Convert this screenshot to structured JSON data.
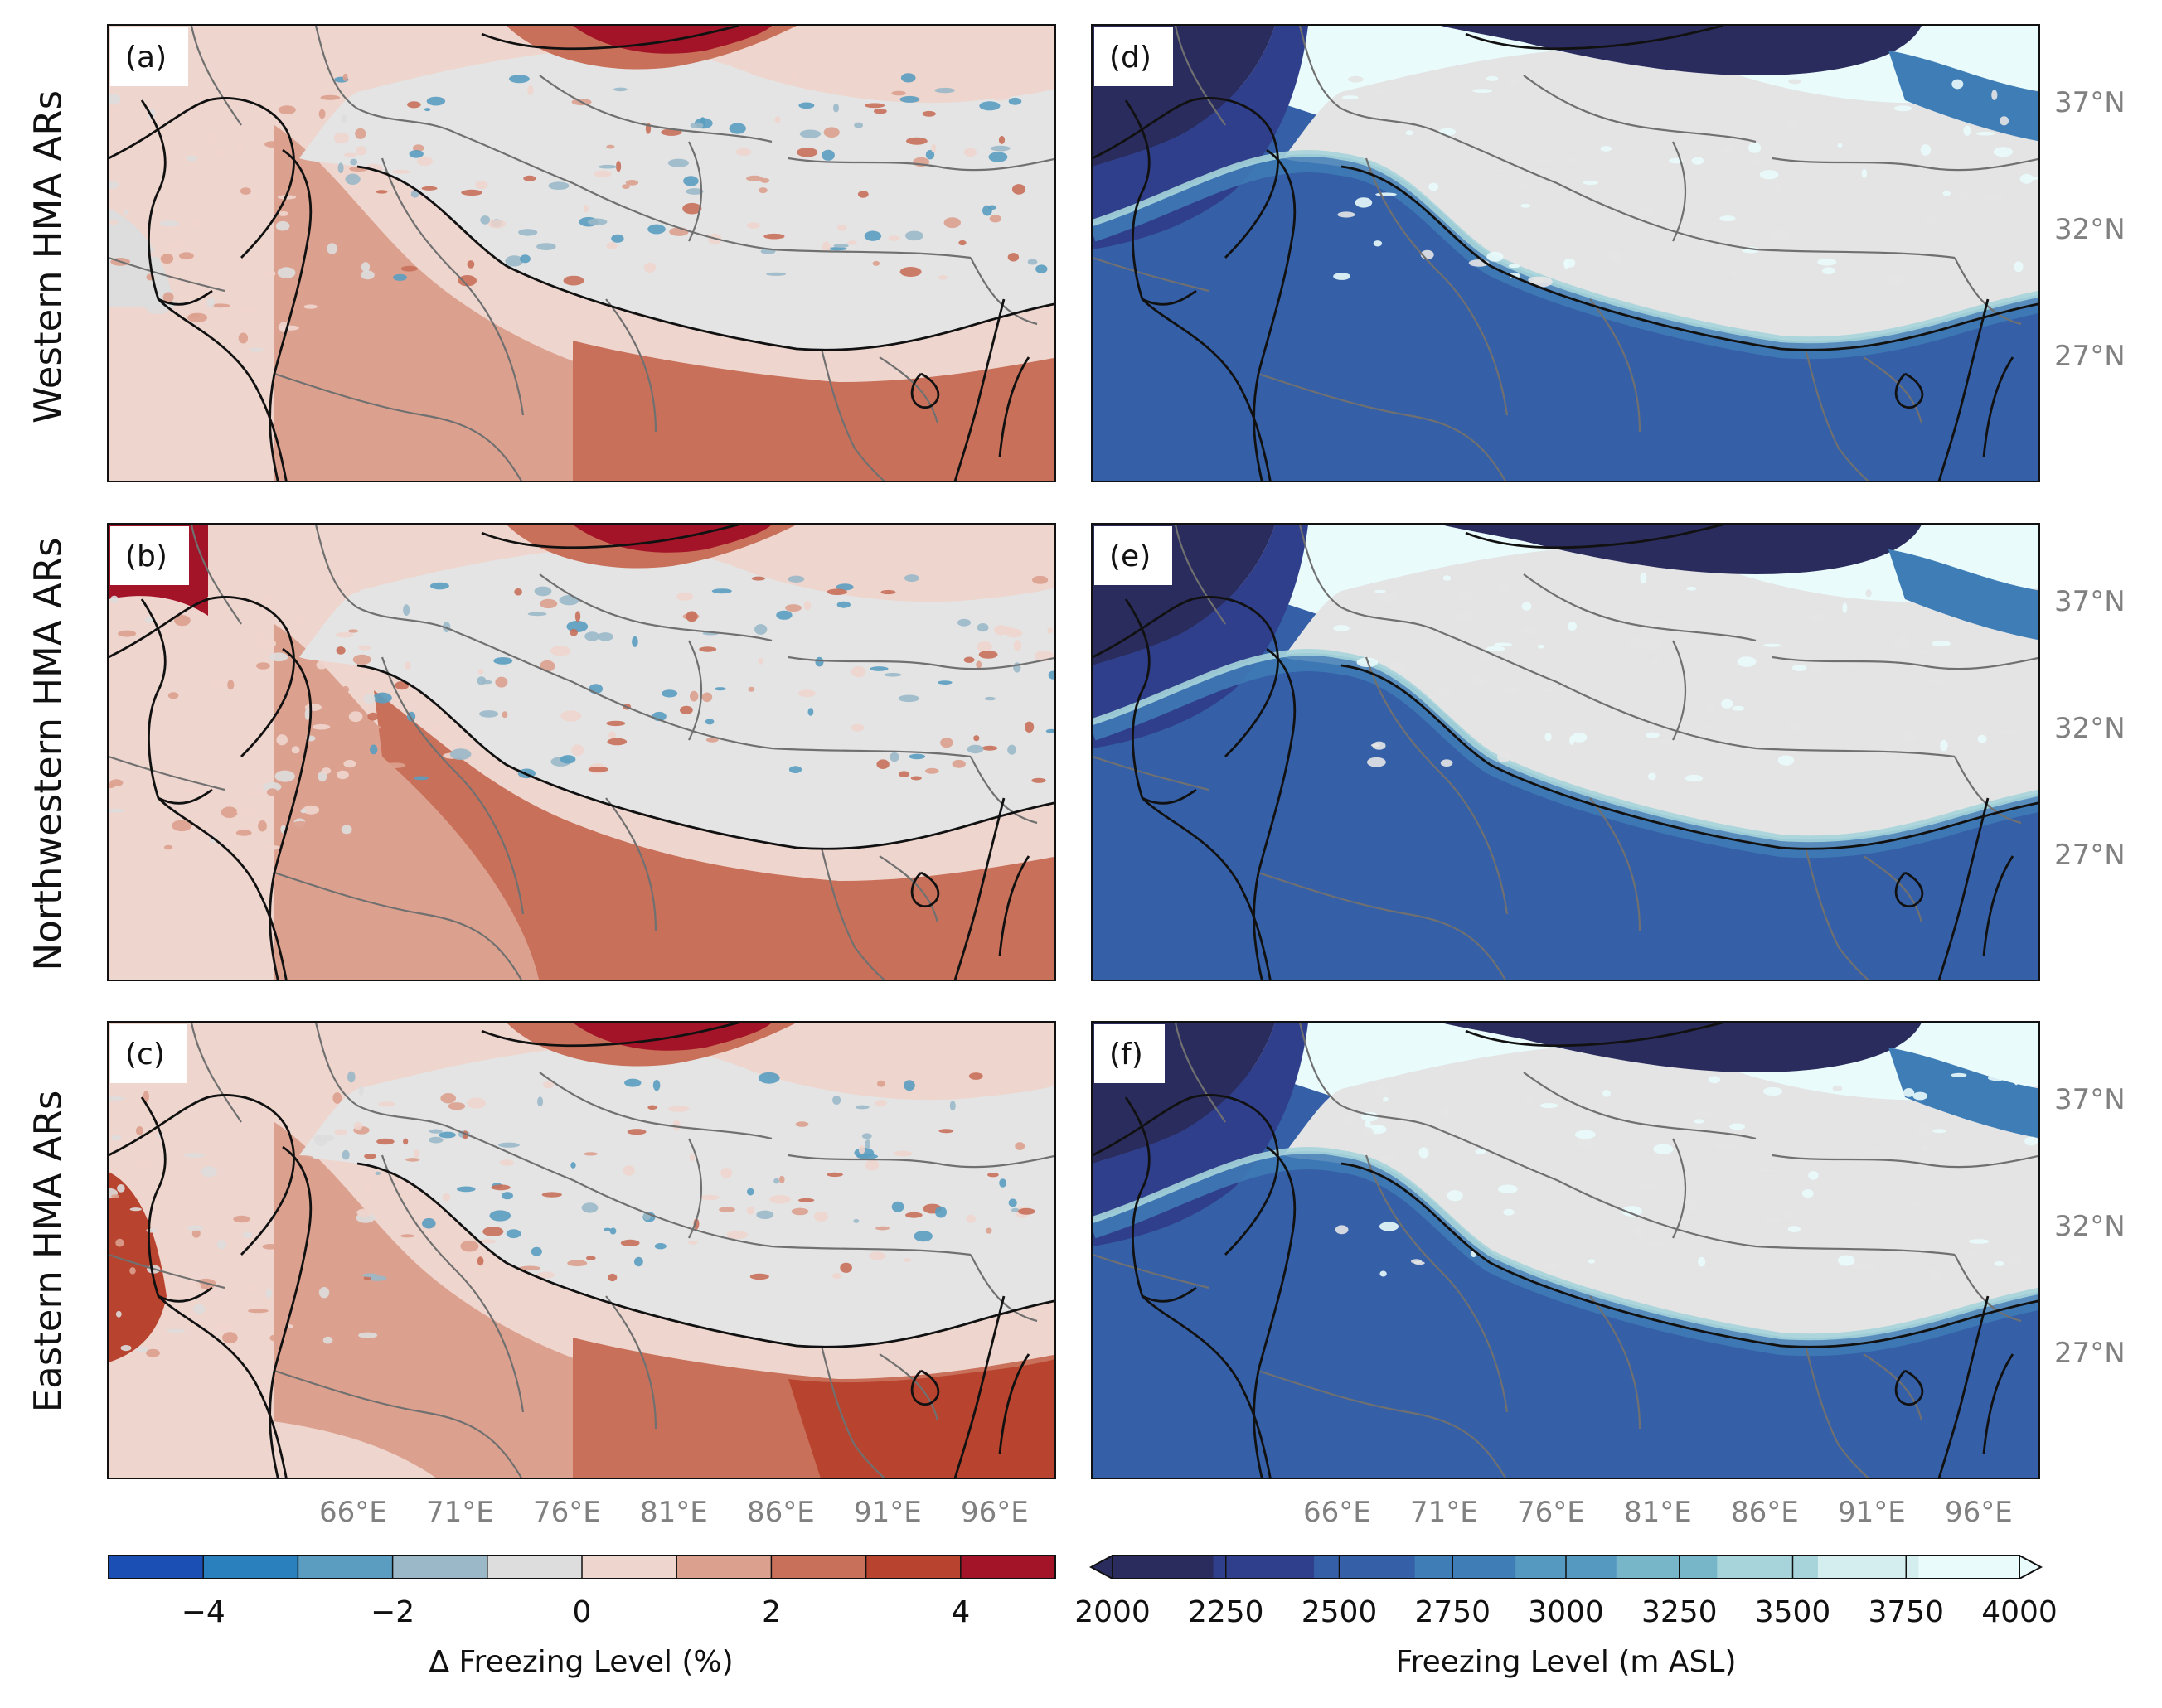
{
  "rows": [
    {
      "title": "Western HMA ARs",
      "left_label": "(a)",
      "right_label": "(d)"
    },
    {
      "title": "Northwestern HMA ARs",
      "left_label": "(b)",
      "right_label": "(e)"
    },
    {
      "title": "Eastern HMA ARs",
      "left_label": "(c)",
      "right_label": "(f)"
    }
  ],
  "axes": {
    "lon_ticks": [
      "66°E",
      "71°E",
      "76°E",
      "81°E",
      "86°E",
      "91°E",
      "96°E"
    ],
    "lat_ticks": [
      "37°N",
      "32°N",
      "27°N"
    ]
  },
  "colorbar_left": {
    "label": "Δ Freezing Level (%)",
    "tick_labels": [
      "−4",
      "−2",
      "0",
      "2",
      "4"
    ],
    "tick_values": [
      -4,
      -2,
      0,
      2,
      4
    ],
    "range": [
      -5,
      5
    ],
    "colors": [
      "#1c4fb4",
      "#2a80bd",
      "#5a9dc0",
      "#9ab8c8",
      "#dddddd",
      "#eed5cd",
      "#dca08e",
      "#c8705a",
      "#b8442f",
      "#a31428"
    ]
  },
  "colorbar_right": {
    "label": "Freezing Level (m ASL)",
    "tick_labels": [
      "2000",
      "2250",
      "2500",
      "2750",
      "3000",
      "3250",
      "3500",
      "3750",
      "4000"
    ],
    "range": [
      2000,
      4000
    ],
    "colors": [
      "#2a2c5e",
      "#2f3f8c",
      "#3560a8",
      "#3f7db6",
      "#5699c0",
      "#77b5c9",
      "#a6d4da",
      "#d4eef0",
      "#e9fbfb"
    ],
    "extend": "both"
  },
  "colors": {
    "plateau_gray": "#e4e4e4",
    "coastline": "#111111",
    "border": "#707070",
    "tick_text": "#808080"
  }
}
